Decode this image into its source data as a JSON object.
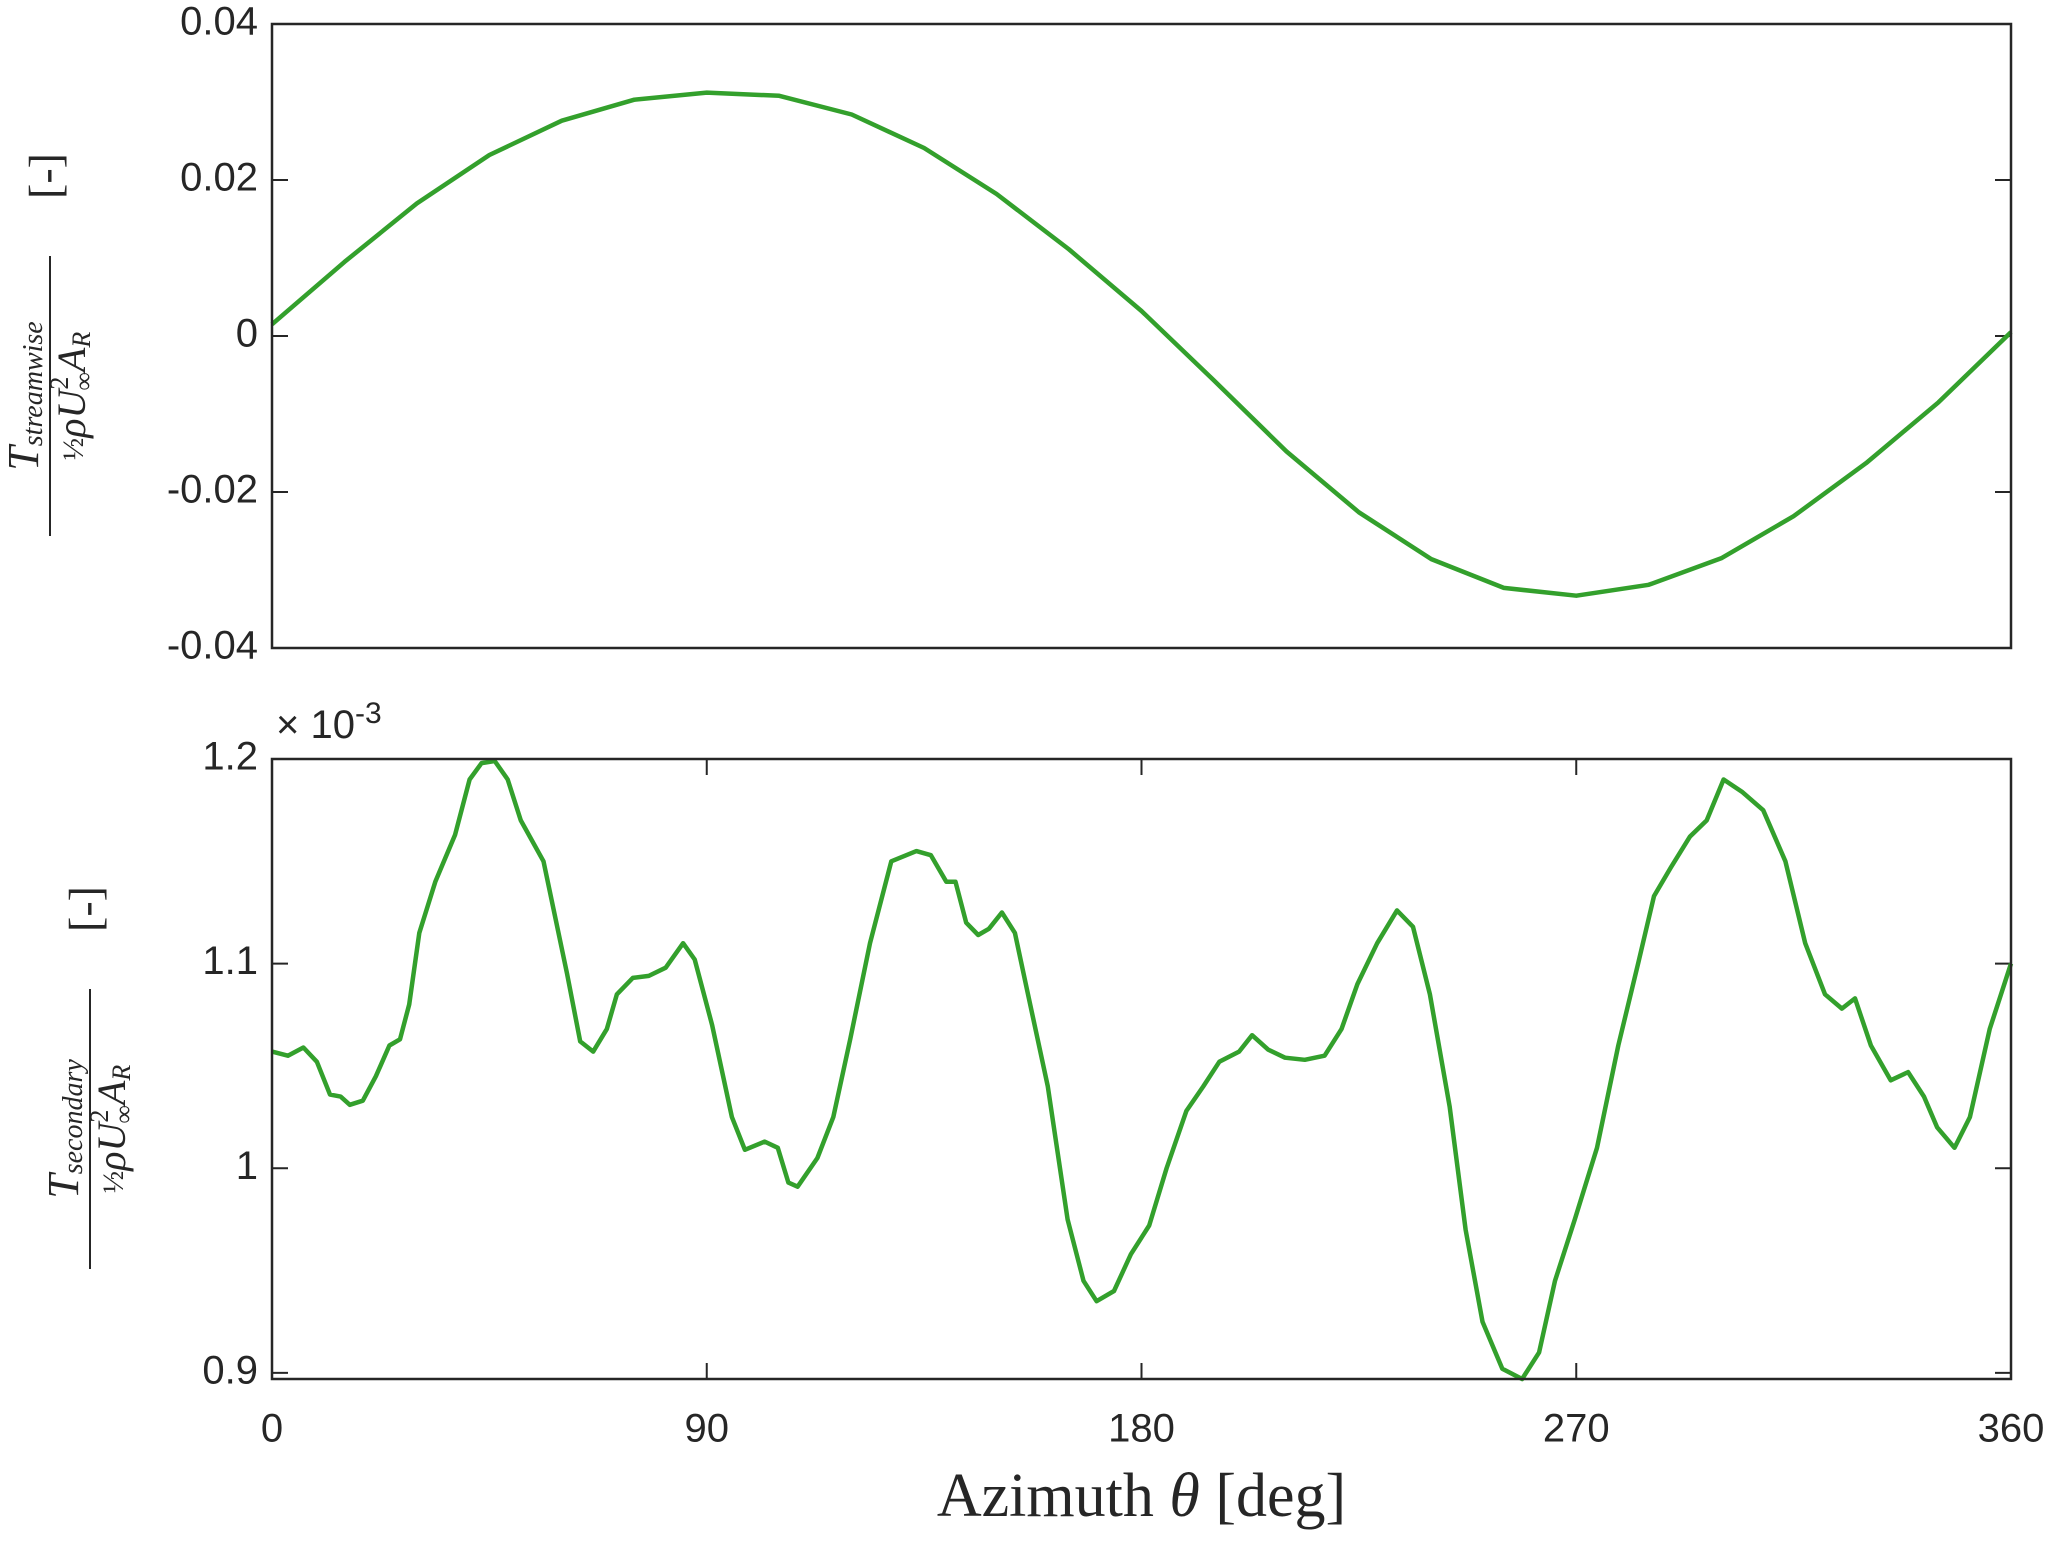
{
  "chart_data": [
    {
      "type": "line",
      "y_label": {
        "symbol": "T",
        "subscript": "streamwise",
        "half": "½",
        "denominator": "ρU",
        "power": "2",
        "inf": "∞",
        "area": "A",
        "area_sub": "R",
        "unit": "[-]"
      },
      "xlim": [
        0,
        360
      ],
      "ylim": [
        -0.04,
        0.04
      ],
      "yticks": [
        0.04,
        0.02,
        0,
        -0.02,
        -0.04
      ],
      "series": [
        {
          "color": "#33a02c",
          "x": [
            0,
            15,
            30,
            45,
            60,
            75,
            90,
            105,
            120,
            135,
            150,
            165,
            180,
            195,
            210,
            225,
            240,
            255,
            270,
            285,
            300,
            315,
            330,
            345,
            360
          ],
          "values": [
            0.0015,
            0.0095,
            0.017,
            0.0232,
            0.0276,
            0.0303,
            0.0312,
            0.0308,
            0.0284,
            0.0241,
            0.0182,
            0.0111,
            0.0032,
            -0.0057,
            -0.0148,
            -0.0226,
            -0.0286,
            -0.0323,
            -0.0333,
            -0.0319,
            -0.0285,
            -0.0231,
            -0.0163,
            -0.0085,
            0.0005
          ]
        }
      ]
    },
    {
      "type": "line",
      "y_label": {
        "symbol": "T",
        "subscript": "secondary",
        "half": "½",
        "denominator": "ρU",
        "power": "2",
        "inf": "∞",
        "area": "A",
        "area_sub": "R",
        "unit": "[-]"
      },
      "y_multiplier": {
        "base": "× 10",
        "exponent": "-3"
      },
      "x_label": {
        "text": "Azimuth ",
        "symbol": "θ",
        "unit": " [deg]"
      },
      "xlim": [
        0,
        360
      ],
      "xticks": [
        0,
        90,
        180,
        270,
        360
      ],
      "ylim": [
        0.897,
        1.2
      ],
      "yticks": [
        1.2,
        1.1,
        1,
        0.9
      ],
      "series": [
        {
          "color": "#33a02c",
          "x": [
            0,
            3.3,
            6.5,
            9.3,
            12,
            14.2,
            16.1,
            18.8,
            21.5,
            24.3,
            26.5,
            28.4,
            30.5,
            33.8,
            37.9,
            40.9,
            43.4,
            46.1,
            48.8,
            51.5,
            56.2,
            61.1,
            63.8,
            66.5,
            69.3,
            71.4,
            74.7,
            78,
            81.5,
            85.1,
            87.5,
            91.1,
            95.2,
            97.9,
            102,
            104.7,
            106.9,
            108.8,
            112.9,
            116.2,
            119.7,
            123.8,
            128.2,
            133.4,
            136.4,
            139.6,
            141.5,
            143.7,
            146.2,
            148.4,
            151.1,
            153.8,
            156.5,
            160.6,
            164.7,
            168,
            170.7,
            174.3,
            177.8,
            181.6,
            185.2,
            189.3,
            192.8,
            196.1,
            200.2,
            202.9,
            206.2,
            209.7,
            213.8,
            217.9,
            221.4,
            224.7,
            228.8,
            232.9,
            236.2,
            239.7,
            243.8,
            247.1,
            250.6,
            254.7,
            258.8,
            262.3,
            265.6,
            269.7,
            274.3,
            278.7,
            282.8,
            286.1,
            289.6,
            293.5,
            297,
            300.5,
            304.3,
            308.7,
            313.3,
            317.4,
            321.5,
            325,
            327.7,
            331,
            335.1,
            338.7,
            342,
            344.7,
            348.3,
            351.5,
            355.6,
            360
          ],
          "values": [
            1.057,
            1.055,
            1.059,
            1.052,
            1.036,
            1.035,
            1.031,
            1.033,
            1.045,
            1.06,
            1.063,
            1.08,
            1.115,
            1.14,
            1.163,
            1.19,
            1.198,
            1.199,
            1.19,
            1.17,
            1.15,
            1.095,
            1.062,
            1.057,
            1.068,
            1.085,
            1.093,
            1.094,
            1.098,
            1.11,
            1.102,
            1.07,
            1.025,
            1.009,
            1.013,
            1.01,
            0.993,
            0.991,
            1.005,
            1.025,
            1.063,
            1.11,
            1.15,
            1.155,
            1.153,
            1.14,
            1.14,
            1.12,
            1.114,
            1.117,
            1.125,
            1.115,
            1.085,
            1.04,
            0.975,
            0.945,
            0.935,
            0.94,
            0.958,
            0.972,
            1,
            1.028,
            1.04,
            1.052,
            1.057,
            1.065,
            1.058,
            1.054,
            1.053,
            1.055,
            1.068,
            1.09,
            1.11,
            1.126,
            1.118,
            1.085,
            1.03,
            0.97,
            0.925,
            0.902,
            0.897,
            0.91,
            0.945,
            0.975,
            1.01,
            1.06,
            1.1,
            1.133,
            1.147,
            1.162,
            1.17,
            1.19,
            1.184,
            1.175,
            1.15,
            1.11,
            1.085,
            1.078,
            1.083,
            1.06,
            1.043,
            1.047,
            1.035,
            1.02,
            1.01,
            1.025,
            1.068,
            1.1
          ]
        }
      ]
    }
  ]
}
